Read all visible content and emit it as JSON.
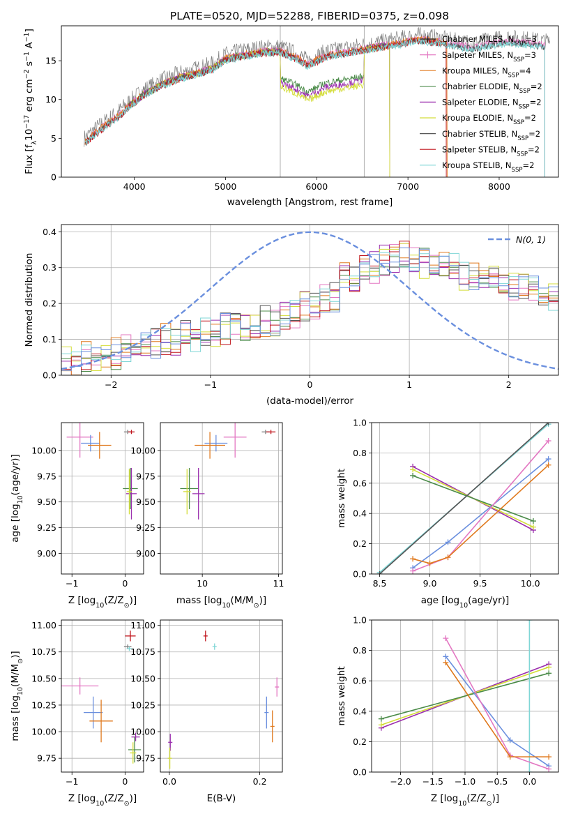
{
  "title": "PLATE=0520, MJD=52288, FIBERID=0375, z=0.098",
  "chart_data": [
    {
      "id": "spectrum",
      "type": "line",
      "xlabel": "wavelength [Angstrom, rest frame]",
      "ylabel_main": "Flux [f",
      "ylabel_sub1": "λ",
      "ylabel_mid": "10",
      "ylabel_sup1": "−17",
      "ylabel_rest": " erg cm",
      "ylabel_sup2": "−2",
      "ylabel_rest2": " s",
      "ylabel_sup3": "−1",
      "ylabel_rest3": " A",
      "ylabel_sup4": "−1",
      "ylabel_end": "]",
      "xlim": [
        3200,
        8650
      ],
      "ylim": [
        0,
        19.5
      ],
      "xticks": [
        "4000",
        "5000",
        "6000",
        "7000",
        "8000"
      ],
      "yticks": [
        "0",
        "5",
        "10",
        "15"
      ],
      "vlines": [
        5600,
        6520
      ],
      "legend_position": "top-right",
      "series": [
        {
          "name": "Chabrier MILES, N",
          "sub": "SSP",
          "suffix": "=3",
          "color": "#1f1f1f",
          "marker": "+"
        },
        {
          "name": "Salpeter MILES, N",
          "sub": "SSP",
          "suffix": "=3",
          "color": "#e377c2",
          "marker": "+"
        },
        {
          "name": "Kroupa MILES, N",
          "sub": "SSP",
          "suffix": "=4",
          "color": "#e07a1f",
          "marker": ""
        },
        {
          "name": "Chabrier ELODIE, N",
          "sub": "SSP",
          "suffix": "=2",
          "color": "#4c8c4a",
          "marker": ""
        },
        {
          "name": "Salpeter ELODIE, N",
          "sub": "SSP",
          "suffix": "=2",
          "color": "#9b2fae",
          "marker": ""
        },
        {
          "name": "Kroupa ELODIE, N",
          "sub": "SSP",
          "suffix": "=2",
          "color": "#d4dd3a",
          "marker": ""
        },
        {
          "name": "Chabrier STELIB, N",
          "sub": "SSP",
          "suffix": "=2",
          "color": "#555555",
          "marker": ""
        },
        {
          "name": "Salpeter STELIB, N",
          "sub": "SSP",
          "suffix": "=2",
          "color": "#c0141c",
          "marker": ""
        },
        {
          "name": "Kroupa STELIB, N",
          "sub": "SSP",
          "suffix": "=2",
          "color": "#7fd6d6",
          "marker": ""
        }
      ],
      "data_color": "#7f7f7f",
      "data": {
        "x": [
          3450,
          3600,
          3800,
          3950,
          4100,
          4300,
          4500,
          4700,
          4860,
          5000,
          5200,
          5400,
          5600,
          5800,
          5900,
          6100,
          6300,
          6500,
          6700,
          6900,
          7100,
          7300,
          7500,
          7700,
          7900,
          8100,
          8300,
          8500
        ],
        "y": [
          5.0,
          6.5,
          8.2,
          9.8,
          11.2,
          12.5,
          13.4,
          14.0,
          14.6,
          15.8,
          16.3,
          16.7,
          16.8,
          15.8,
          15.0,
          16.2,
          16.6,
          17.0,
          17.4,
          17.8,
          18.3,
          18.0,
          17.6,
          17.2,
          17.7,
          18.0,
          17.8,
          17.5
        ]
      }
    },
    {
      "id": "residuals",
      "type": "histogram",
      "xlabel": "(data-model)/error",
      "ylabel": "Normed distribution",
      "xlim": [
        -2.5,
        2.5
      ],
      "ylim": [
        0,
        0.42
      ],
      "xticks": [
        "−2",
        "−1",
        "0",
        "1",
        "2"
      ],
      "yticks": [
        "0.0",
        "0.1",
        "0.2",
        "0.3",
        "0.4"
      ],
      "grid": true,
      "legend_label": "N(0, 1)",
      "legend_position": "top-right",
      "gaussian_color": "#6a8fde",
      "bin_edges": [
        -2.5,
        -2.3,
        -2.1,
        -1.9,
        -1.7,
        -1.5,
        -1.3,
        -1.1,
        -0.9,
        -0.7,
        -0.5,
        -0.3,
        -0.1,
        0.1,
        0.3,
        0.5,
        0.7,
        0.9,
        1.1,
        1.3,
        1.5,
        1.7,
        1.9,
        2.1,
        2.3,
        2.5
      ],
      "hist_values": [
        0.04,
        0.05,
        0.06,
        0.07,
        0.09,
        0.1,
        0.11,
        0.12,
        0.13,
        0.14,
        0.15,
        0.17,
        0.19,
        0.22,
        0.27,
        0.3,
        0.32,
        0.33,
        0.31,
        0.3,
        0.28,
        0.27,
        0.25,
        0.24,
        0.22
      ]
    },
    {
      "id": "age-vs-Z",
      "type": "scatter",
      "xlabel": "Z [log",
      "xlabel_sub": "10",
      "xlabel_rest": "(Z/Z",
      "xlabel_sub2": "⊙",
      "xlabel_end": ")]",
      "ylabel": "age  [log",
      "ylabel_sub": "10",
      "ylabel_rest": "(age/yr)]",
      "xlim": [
        -1.2,
        0.35
      ],
      "ylim": [
        8.8,
        10.27
      ],
      "xticks": [
        "−1",
        "0"
      ],
      "yticks": [
        "9.00",
        "9.25",
        "9.50",
        "9.75",
        "10.00"
      ],
      "points": [
        {
          "x": -0.85,
          "y": 10.13,
          "xerr": 0.25,
          "yerr": 0.2,
          "color": "#e377c2"
        },
        {
          "x": -0.65,
          "y": 10.07,
          "xerr": 0.18,
          "yerr": 0.08,
          "color": "#6a8fde"
        },
        {
          "x": -0.48,
          "y": 10.05,
          "xerr": 0.22,
          "yerr": 0.13,
          "color": "#e07a1f"
        },
        {
          "x": 0.05,
          "y": 10.18,
          "xerr": 0.07,
          "yerr": 0.0,
          "color": "#7f7f7f"
        },
        {
          "x": 0.12,
          "y": 10.18,
          "xerr": 0.06,
          "yerr": 0.0,
          "color": "#c0141c"
        },
        {
          "x": 0.1,
          "y": 9.63,
          "xerr": 0.14,
          "yerr": 0.2,
          "color": "#4c8c4a"
        },
        {
          "x": 0.12,
          "y": 9.58,
          "xerr": 0.1,
          "yerr": 0.25,
          "color": "#9b2fae"
        },
        {
          "x": 0.08,
          "y": 9.6,
          "xerr": 0.05,
          "yerr": 0.22,
          "color": "#d4dd3a"
        }
      ]
    },
    {
      "id": "age-vs-mass",
      "type": "scatter",
      "xlabel": "mass [log",
      "xlabel_sub": "10",
      "xlabel_rest": "(M/M",
      "xlabel_sub2": "⊙",
      "xlabel_end": ")]",
      "xlim": [
        9.45,
        11.05
      ],
      "ylim": [
        8.8,
        10.27
      ],
      "xticks": [
        "10",
        "11"
      ],
      "yticks": [
        "9.00",
        "9.25",
        "9.50",
        "9.75",
        "10.00"
      ],
      "points": [
        {
          "x": 10.43,
          "y": 10.13,
          "xerr": 0.15,
          "yerr": 0.2,
          "color": "#e377c2"
        },
        {
          "x": 10.18,
          "y": 10.07,
          "xerr": 0.15,
          "yerr": 0.08,
          "color": "#6a8fde"
        },
        {
          "x": 10.1,
          "y": 10.05,
          "xerr": 0.2,
          "yerr": 0.13,
          "color": "#e07a1f"
        },
        {
          "x": 10.83,
          "y": 10.18,
          "xerr": 0.05,
          "yerr": 0.0,
          "color": "#7f7f7f"
        },
        {
          "x": 10.9,
          "y": 10.18,
          "xerr": 0.06,
          "yerr": 0.0,
          "color": "#c0141c"
        },
        {
          "x": 9.83,
          "y": 9.63,
          "xerr": 0.12,
          "yerr": 0.2,
          "color": "#4c8c4a"
        },
        {
          "x": 9.95,
          "y": 9.58,
          "xerr": 0.08,
          "yerr": 0.25,
          "color": "#9b2fae"
        },
        {
          "x": 9.8,
          "y": 9.6,
          "xerr": 0.05,
          "yerr": 0.22,
          "color": "#d4dd3a"
        }
      ]
    },
    {
      "id": "massweight-vs-age",
      "type": "line",
      "xlabel": "age  [log",
      "xlabel_sub": "10",
      "xlabel_rest": "(age/yr)]",
      "ylabel": "mass weight",
      "xlim": [
        8.42,
        10.28
      ],
      "ylim": [
        0,
        1
      ],
      "xticks": [
        "8.5",
        "9.0",
        "9.5",
        "10.0"
      ],
      "yticks": [
        "0.0",
        "0.2",
        "0.4",
        "0.6",
        "0.8",
        "1.0"
      ],
      "grid": true,
      "series": [
        {
          "color": "#9b2fae",
          "x": [
            8.83,
            10.03
          ],
          "y": [
            0.71,
            0.29
          ]
        },
        {
          "color": "#d4dd3a",
          "x": [
            8.83,
            10.03
          ],
          "y": [
            0.69,
            0.31
          ]
        },
        {
          "color": "#4c8c4a",
          "x": [
            8.83,
            10.03
          ],
          "y": [
            0.65,
            0.35
          ]
        },
        {
          "color": "#7fd6d6",
          "x": [
            8.5,
            10.18
          ],
          "y": [
            0.01,
            0.99
          ]
        },
        {
          "color": "#555555",
          "x": [
            8.5,
            10.18
          ],
          "y": [
            0.0,
            1.0
          ]
        },
        {
          "color": "#6a8fde",
          "x": [
            8.83,
            9.18,
            10.18
          ],
          "y": [
            0.04,
            0.21,
            0.76
          ]
        },
        {
          "color": "#e377c2",
          "x": [
            8.83,
            9.18,
            10.18
          ],
          "y": [
            0.02,
            0.11,
            0.88
          ]
        },
        {
          "color": "#e07a1f",
          "x": [
            8.83,
            9.0,
            9.18,
            10.18
          ],
          "y": [
            0.1,
            0.07,
            0.11,
            0.72
          ]
        }
      ]
    },
    {
      "id": "mass-vs-Z",
      "type": "scatter",
      "xlabel": "Z [log",
      "xlabel_sub": "10",
      "xlabel_rest": "(Z/Z",
      "xlabel_sub2": "⊙",
      "xlabel_end": ")]",
      "ylabel": "mass [log",
      "ylabel_sub": "10",
      "ylabel_rest": "(M/M",
      "ylabel_sub2": "⊙",
      "ylabel_end": ")]",
      "xlim": [
        -1.2,
        0.35
      ],
      "ylim": [
        9.62,
        11.05
      ],
      "xticks": [
        "−1",
        "0"
      ],
      "yticks": [
        "9.75",
        "10.00",
        "10.25",
        "10.50",
        "10.75",
        "11.00"
      ],
      "points": [
        {
          "x": -0.85,
          "y": 10.43,
          "xerr": 0.35,
          "yerr": 0.08,
          "color": "#e377c2"
        },
        {
          "x": -0.6,
          "y": 10.18,
          "xerr": 0.18,
          "yerr": 0.15,
          "color": "#6a8fde"
        },
        {
          "x": -0.45,
          "y": 10.1,
          "xerr": 0.22,
          "yerr": 0.2,
          "color": "#e07a1f"
        },
        {
          "x": 0.05,
          "y": 10.8,
          "xerr": 0.07,
          "yerr": 0.02,
          "color": "#7f7f7f"
        },
        {
          "x": 0.1,
          "y": 10.9,
          "xerr": 0.1,
          "yerr": 0.05,
          "color": "#c0141c"
        },
        {
          "x": 0.08,
          "y": 10.78,
          "xerr": 0.05,
          "yerr": 0.02,
          "color": "#7fd6d6"
        },
        {
          "x": 0.2,
          "y": 9.95,
          "xerr": 0.08,
          "yerr": 0.04,
          "color": "#9b2fae"
        },
        {
          "x": 0.18,
          "y": 9.83,
          "xerr": 0.12,
          "yerr": 0.12,
          "color": "#4c8c4a"
        },
        {
          "x": 0.15,
          "y": 9.8,
          "xerr": 0.06,
          "yerr": 0.1,
          "color": "#d4dd3a"
        }
      ]
    },
    {
      "id": "mass-vs-EBV",
      "type": "scatter",
      "xlabel": "E(B-V)",
      "xlim": [
        -0.02,
        0.25
      ],
      "ylim": [
        9.62,
        11.05
      ],
      "xticks": [
        "0.0",
        "0.2"
      ],
      "yticks": [
        "9.75",
        "10.00",
        "10.25",
        "10.50",
        "10.75",
        "11.00"
      ],
      "points": [
        {
          "x": 0.08,
          "y": 10.9,
          "xerr": 0.0,
          "yerr": 0.05,
          "color": "#c0141c"
        },
        {
          "x": 0.1,
          "y": 10.8,
          "xerr": 0.0,
          "yerr": 0.03,
          "color": "#7fd6d6"
        },
        {
          "x": 0.215,
          "y": 10.18,
          "xerr": 0.0,
          "yerr": 0.15,
          "color": "#6a8fde"
        },
        {
          "x": 0.238,
          "y": 10.42,
          "xerr": 0.0,
          "yerr": 0.09,
          "color": "#e377c2"
        },
        {
          "x": 0.228,
          "y": 10.05,
          "xerr": 0.0,
          "yerr": 0.15,
          "color": "#e07a1f"
        },
        {
          "x": 0.002,
          "y": 9.9,
          "xerr": 0.0,
          "yerr": 0.08,
          "color": "#9b2fae"
        },
        {
          "x": 0.001,
          "y": 9.75,
          "xerr": 0.0,
          "yerr": 0.1,
          "color": "#d4dd3a"
        }
      ]
    },
    {
      "id": "massweight-vs-Z",
      "type": "line",
      "xlabel": "Z [log",
      "xlabel_sub": "10",
      "xlabel_rest": "(Z/Z",
      "xlabel_sub2": "⊙",
      "xlabel_end": ")]",
      "ylabel": "mass weight",
      "xlim": [
        -2.45,
        0.45
      ],
      "ylim": [
        0,
        1
      ],
      "xticks": [
        "−2.0",
        "−1.5",
        "−1.0",
        "−0.5",
        "0.0"
      ],
      "yticks": [
        "0.0",
        "0.2",
        "0.4",
        "0.6",
        "0.8",
        "1.0"
      ],
      "grid": true,
      "series": [
        {
          "color": "#9b2fae",
          "x": [
            -2.3,
            0.3
          ],
          "y": [
            0.29,
            0.71
          ]
        },
        {
          "color": "#d4dd3a",
          "x": [
            -2.3,
            0.3
          ],
          "y": [
            0.31,
            0.69
          ]
        },
        {
          "color": "#4c8c4a",
          "x": [
            -2.3,
            0.3
          ],
          "y": [
            0.35,
            0.65
          ]
        },
        {
          "color": "#7fd6d6",
          "x": [
            0.0,
            0.0
          ],
          "y": [
            0.0,
            1.0
          ]
        },
        {
          "color": "#6a8fde",
          "x": [
            -1.3,
            -0.3,
            0.3
          ],
          "y": [
            0.76,
            0.21,
            0.04
          ]
        },
        {
          "color": "#e377c2",
          "x": [
            -1.3,
            -0.3,
            0.3
          ],
          "y": [
            0.88,
            0.11,
            0.02
          ]
        },
        {
          "color": "#e07a1f",
          "x": [
            -1.3,
            -0.3,
            0.3
          ],
          "y": [
            0.72,
            0.1,
            0.1
          ]
        }
      ]
    }
  ]
}
